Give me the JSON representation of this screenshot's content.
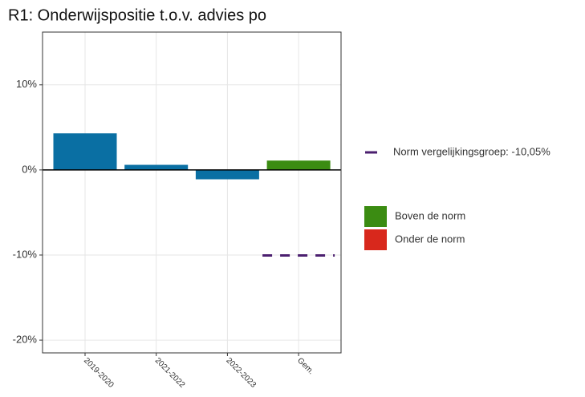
{
  "chart_data": {
    "type": "bar",
    "title": "R1: Onderwijspositie t.o.v. advies po",
    "categories": [
      "2019-2020",
      "2021-2022",
      "2022-2023",
      "Gem."
    ],
    "values": [
      4.3,
      0.6,
      -1.1,
      1.1
    ],
    "colors": [
      "#0a6fa3",
      "#0a6fa3",
      "#0a6fa3",
      "#3b8c12"
    ],
    "ylim": [
      -21.5,
      16.2
    ],
    "yticks": [
      {
        "value": -20,
        "label": "-20%"
      },
      {
        "value": -10,
        "label": "-10%"
      },
      {
        "value": 0,
        "label": "0%"
      },
      {
        "value": 10,
        "label": "10%"
      }
    ],
    "grid": true,
    "norm": {
      "name": "Norm vergelijkingsgroep: -10,05%",
      "value": -10.05,
      "color": "#4b1f6f",
      "category": 3
    },
    "legend": [
      {
        "name": "Boven de norm",
        "color": "#3b8c12"
      },
      {
        "name": "Onder de norm",
        "color": "#d8281c"
      }
    ]
  }
}
